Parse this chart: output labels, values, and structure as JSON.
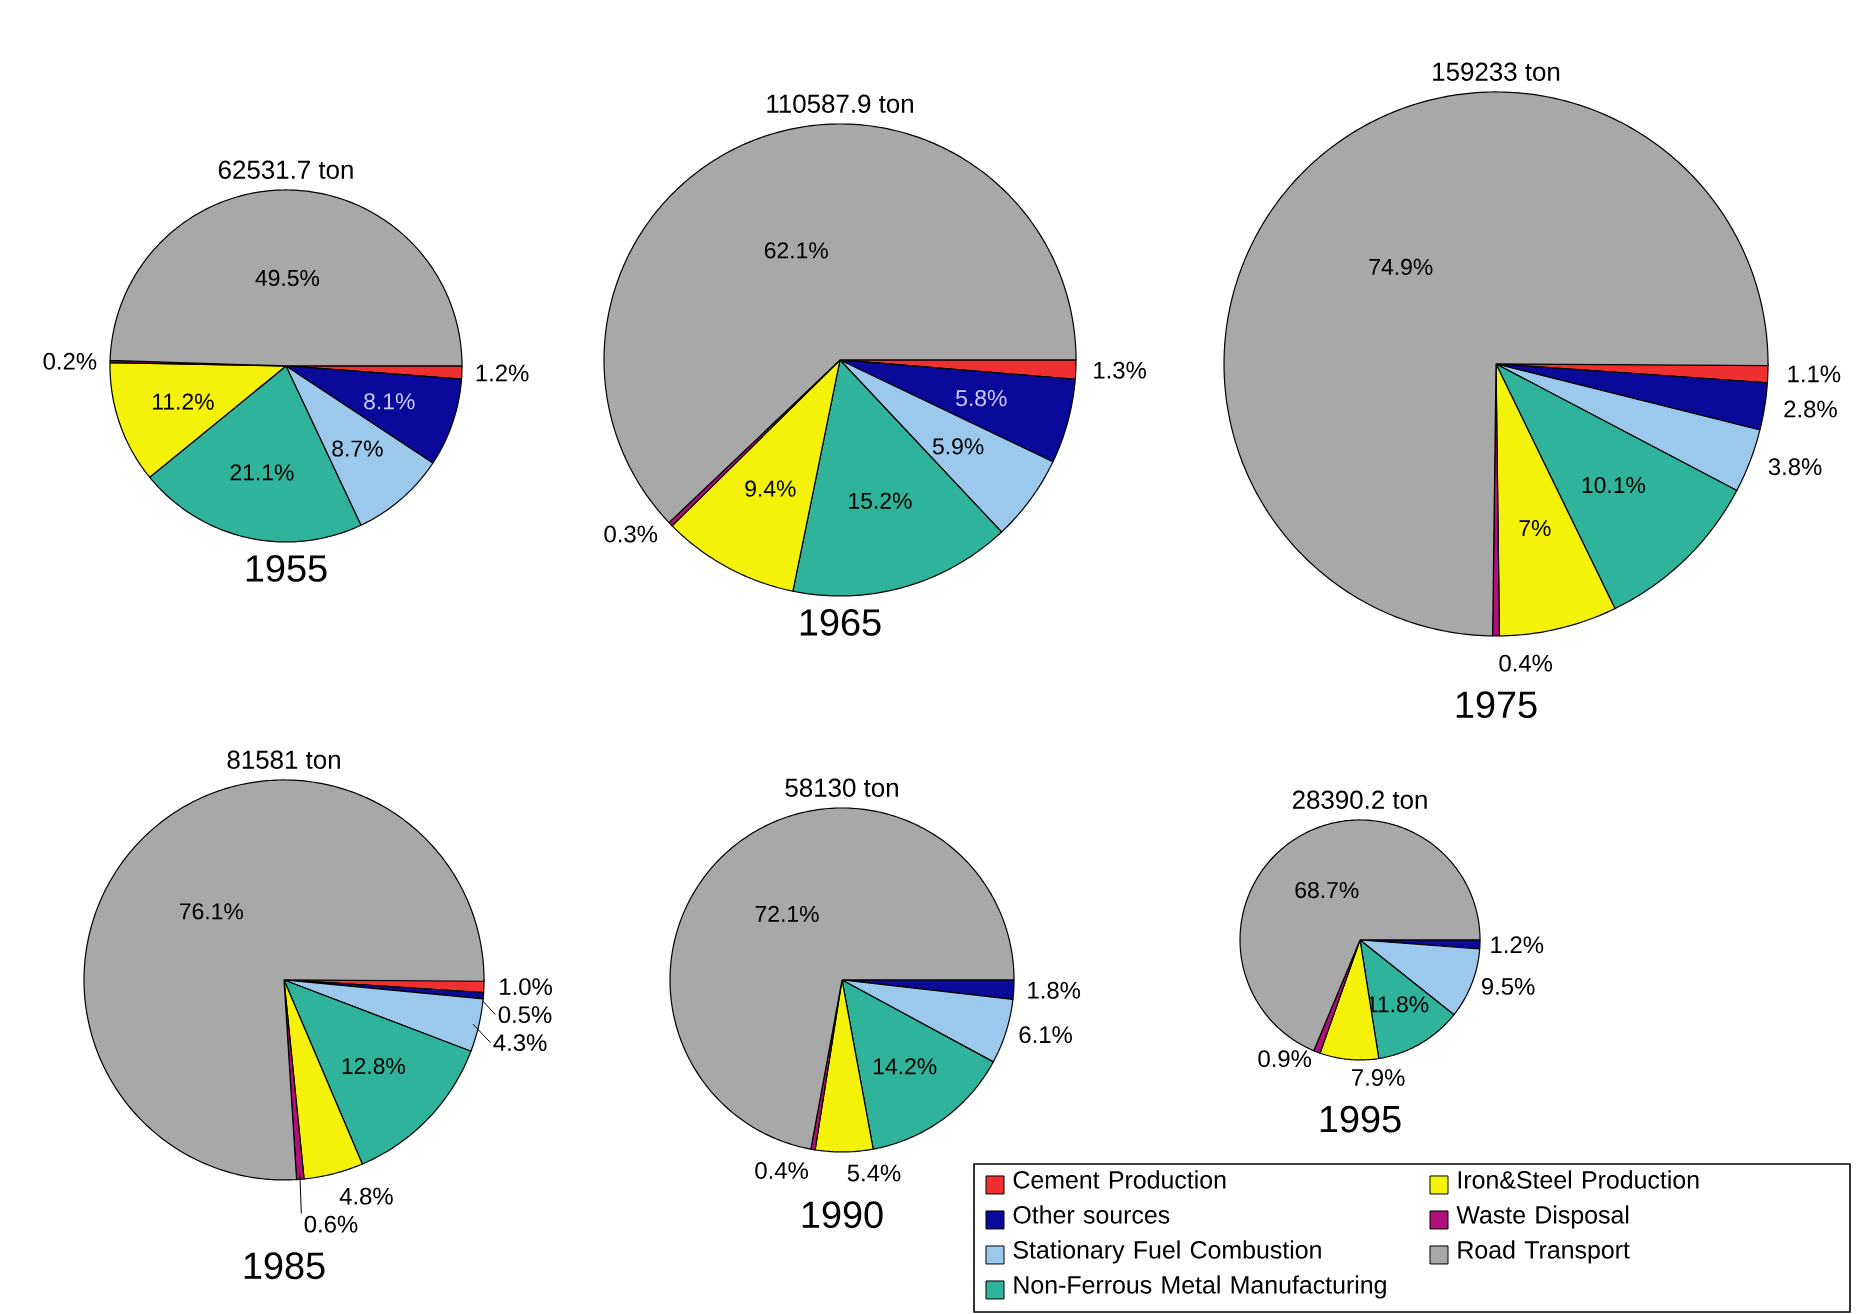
{
  "chart_data": [
    {
      "type": "pie",
      "title": "62531.7 ton",
      "subtitle": "1955",
      "categories": [
        null,
        null,
        null,
        null,
        null,
        null,
        null
      ],
      "colors": [
        "#f03030",
        "#0a0a9a",
        "#9cc8ec",
        "#2fb39a",
        "#f5f20a",
        "#b0107a",
        "#a8a8a8"
      ],
      "values": [
        1.2,
        8.1,
        8.7,
        21.1,
        11.2,
        0.2,
        49.5
      ],
      "value_labels": [
        "1.2%",
        "8.1%",
        "8.7%",
        "21.1%",
        "11.2%",
        "0.2%",
        "49.5%"
      ]
    },
    {
      "type": "pie",
      "title": "110587.9 ton",
      "subtitle": "1965",
      "categories": [
        null,
        null,
        null,
        null,
        null,
        null,
        null
      ],
      "colors": [
        "#f03030",
        "#0a0a9a",
        "#9cc8ec",
        "#2fb39a",
        "#f5f20a",
        "#b0107a",
        "#a8a8a8"
      ],
      "values": [
        1.3,
        5.8,
        5.9,
        15.2,
        9.4,
        0.3,
        62.1
      ],
      "value_labels": [
        "1.3%",
        "5.8%",
        "5.9%",
        "15.2%",
        "9.4%",
        "0.3%",
        "62.1%"
      ]
    },
    {
      "type": "pie",
      "title": "159233 ton",
      "subtitle": "1975",
      "categories": [
        null,
        null,
        null,
        null,
        null,
        null,
        null
      ],
      "colors": [
        "#f03030",
        "#0a0a9a",
        "#9cc8ec",
        "#2fb39a",
        "#f5f20a",
        "#b0107a",
        "#a8a8a8"
      ],
      "values": [
        1.1,
        2.8,
        3.8,
        10.1,
        7,
        0.4,
        74.9
      ],
      "value_labels": [
        "1.1%",
        "2.8%",
        "3.8%",
        "10.1%",
        "7%",
        "0.4%",
        "74.9%"
      ]
    },
    {
      "type": "pie",
      "title": "81581 ton",
      "subtitle": "1985",
      "categories": [
        null,
        null,
        null,
        null,
        null,
        null,
        null
      ],
      "colors": [
        "#f03030",
        "#0a0a9a",
        "#9cc8ec",
        "#2fb39a",
        "#f5f20a",
        "#b0107a",
        "#a8a8a8"
      ],
      "values": [
        1.0,
        0.5,
        4.3,
        12.8,
        4.8,
        0.6,
        76.1
      ],
      "value_labels": [
        "1.0%",
        "0.5%",
        "4.3%",
        "12.8%",
        "4.8%",
        "0.6%",
        "76.1%"
      ]
    },
    {
      "type": "pie",
      "title": "58130 ton",
      "subtitle": "1990",
      "categories": [
        null,
        null,
        null,
        null,
        null,
        null,
        null
      ],
      "colors": [
        "#f03030",
        "#0a0a9a",
        "#9cc8ec",
        "#2fb39a",
        "#f5f20a",
        "#b0107a",
        "#a8a8a8"
      ],
      "values": [
        null,
        1.8,
        6.1,
        14.2,
        5.4,
        0.4,
        72.1
      ],
      "value_labels": [
        null,
        "1.8%",
        "6.1%",
        "14.2%",
        "5.4%",
        "0.4%",
        "72.1%"
      ]
    },
    {
      "type": "pie",
      "title": "28390.2 ton",
      "subtitle": "1995",
      "categories": [
        "Cement Production",
        "Other sources",
        "Stationary Fuel Combustion",
        "Non-Ferrous Metal Manufacturing",
        "Iron&Steel Production",
        "Waste Disposal",
        "Road Transport"
      ],
      "colors": [
        "#f03030",
        "#0a0a9a",
        "#9cc8ec",
        "#2fb39a",
        "#f5f20a",
        "#b0107a",
        "#a8a8a8"
      ],
      "values": [
        null,
        1.2,
        9.5,
        11.8,
        7.9,
        0.9,
        68.7
      ],
      "value_labels": [
        null,
        "1.2%",
        "9.5%",
        "11.8%",
        "7.9%",
        "0.9%",
        "68.7%"
      ],
      "legend": "bottom"
    }
  ]
}
